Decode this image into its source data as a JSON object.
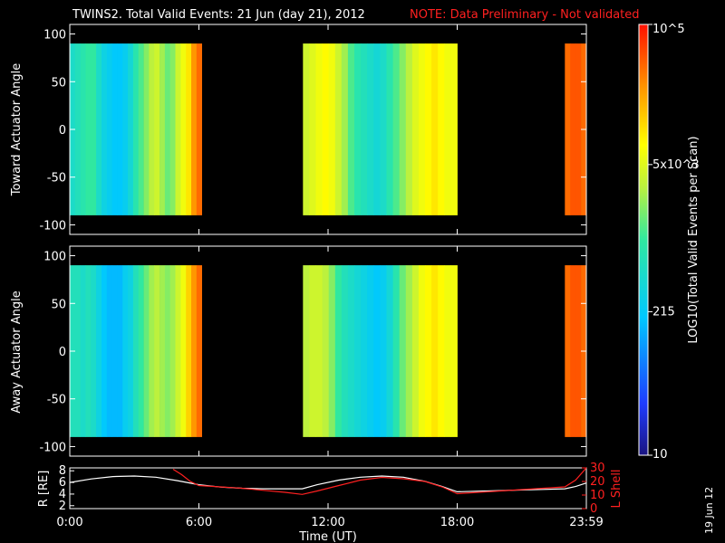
{
  "title": {
    "main": "TWINS2. Total Valid Events: 21 Jun (day  21), 2012",
    "note": "NOTE: Data Preliminary - Not validated"
  },
  "stamp": "19 Jun 12",
  "colors": {
    "background": "#000000",
    "axis": "#ffffff",
    "note": "#ff2020",
    "r_line": "#ffffff",
    "lshell_line": "#ff2020"
  },
  "colorbar": {
    "label": "LOG10(Total Valid Events per Scan)",
    "ticks": [
      {
        "text": "10",
        "value": 10
      },
      {
        "text": "215",
        "value": 215
      },
      {
        "text": "5x10^3",
        "value": 5000
      },
      {
        "text": "10^5",
        "value": 100000
      }
    ],
    "scale": "log",
    "range": [
      10,
      100000
    ]
  },
  "chart_data": [
    {
      "type": "heatmap",
      "ylabel": "Toward Actuator Angle",
      "ylim": [
        -110,
        110
      ],
      "yticks": [
        -100,
        -50,
        0,
        50,
        100
      ],
      "xlim": [
        "00:00",
        "24:00"
      ],
      "data_segments": [
        {
          "start": "00:00",
          "end": "06:08",
          "log_profile": [
            2.7,
            2.8,
            2.9,
            3.0,
            3.0,
            2.7,
            2.5,
            2.4,
            2.3,
            2.3,
            2.4,
            2.6,
            2.9,
            3.1,
            3.3,
            3.5,
            3.6,
            3.4,
            3.2,
            3.3,
            3.6,
            3.8,
            4.0,
            4.4,
            4.6
          ]
        },
        {
          "start": "10:50",
          "end": "18:00",
          "log_profile": [
            3.6,
            3.7,
            3.8,
            3.9,
            3.8,
            3.6,
            3.4,
            3.1,
            2.9,
            2.8,
            2.7,
            2.6,
            2.7,
            2.9,
            3.1,
            3.3,
            3.5,
            3.7,
            3.8,
            3.9,
            4.0,
            3.9,
            3.8,
            3.8
          ]
        },
        {
          "start": "23:00",
          "end": "24:00",
          "log_profile": [
            4.6,
            4.7,
            4.7,
            4.6
          ]
        }
      ],
      "zscale": "log"
    },
    {
      "type": "heatmap",
      "ylabel": "Away Actuator Angle",
      "ylim": [
        -110,
        110
      ],
      "yticks": [
        -100,
        -50,
        0,
        50,
        100
      ],
      "xlim": [
        "00:00",
        "24:00"
      ],
      "data_segments": [
        {
          "start": "00:00",
          "end": "06:08",
          "log_profile": [
            2.8,
            2.8,
            2.7,
            2.8,
            2.7,
            2.5,
            2.3,
            2.2,
            2.2,
            2.2,
            2.4,
            2.5,
            2.8,
            3.0,
            3.2,
            3.4,
            3.5,
            3.4,
            3.3,
            3.4,
            3.6,
            3.8,
            4.1,
            4.4,
            4.6
          ]
        },
        {
          "start": "10:50",
          "end": "18:00",
          "log_profile": [
            3.5,
            3.6,
            3.6,
            3.5,
            3.3,
            3.0,
            2.8,
            2.7,
            2.6,
            2.5,
            2.4,
            2.3,
            2.4,
            2.6,
            2.9,
            3.2,
            3.4,
            3.6,
            3.8,
            3.9,
            4.0,
            3.9,
            3.8,
            3.8
          ]
        },
        {
          "start": "23:00",
          "end": "24:00",
          "log_profile": [
            4.6,
            4.7,
            4.7,
            4.6
          ]
        }
      ],
      "zscale": "log"
    },
    {
      "type": "line",
      "ylabel": "R [RE]",
      "y2label": "L Shell",
      "ylim": [
        1.5,
        8.5
      ],
      "yticks": [
        2,
        4,
        6,
        8
      ],
      "y2lim": [
        0,
        30
      ],
      "y2ticks": [
        0,
        10,
        20,
        30
      ],
      "xlabel": "Time (UT)",
      "xticks": [
        "0:00",
        "6:00",
        "12:00",
        "18:00",
        "23:59"
      ],
      "x_hours": [
        0,
        6,
        12,
        18,
        24
      ],
      "series": [
        {
          "axis": "left",
          "x": [
            0,
            1,
            2,
            3,
            4,
            5,
            6,
            7,
            8,
            9,
            10,
            10.8,
            11.5,
            12.5,
            13.5,
            14.5,
            15.5,
            16.5,
            17.3,
            18,
            19,
            20,
            21,
            22,
            23,
            23.5,
            24
          ],
          "y": [
            6.0,
            6.6,
            7.0,
            7.1,
            6.9,
            6.3,
            5.6,
            5.2,
            5.0,
            4.9,
            4.9,
            4.9,
            5.6,
            6.4,
            6.9,
            7.1,
            6.9,
            6.2,
            5.3,
            4.4,
            4.5,
            4.6,
            4.7,
            4.8,
            4.9,
            5.3,
            5.9
          ]
        },
        {
          "axis": "right",
          "x": [
            4.8,
            5.2,
            5.6,
            6.0,
            7,
            8,
            9,
            10,
            10.8,
            11.5,
            12.5,
            13.5,
            14.5,
            15.5,
            16.5,
            17.3,
            18,
            19,
            20,
            21,
            22,
            23,
            23.5,
            24
          ],
          "y": [
            29,
            25,
            20,
            17,
            16,
            15,
            13.5,
            12,
            10.5,
            13,
            17,
            21,
            23,
            22,
            20,
            16,
            11,
            12,
            13,
            14,
            15,
            16,
            21,
            30
          ]
        }
      ]
    }
  ]
}
